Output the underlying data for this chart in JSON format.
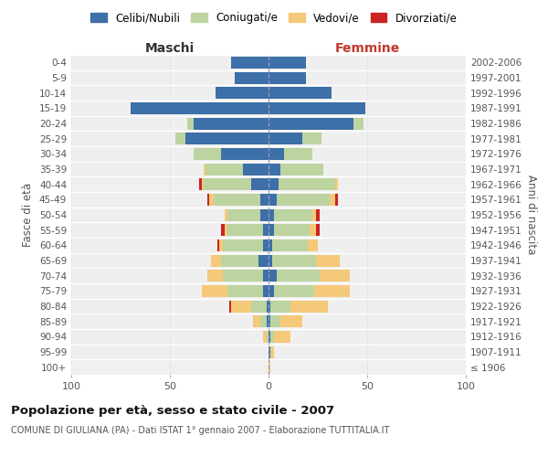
{
  "age_groups": [
    "100+",
    "95-99",
    "90-94",
    "85-89",
    "80-84",
    "75-79",
    "70-74",
    "65-69",
    "60-64",
    "55-59",
    "50-54",
    "45-49",
    "40-44",
    "35-39",
    "30-34",
    "25-29",
    "20-24",
    "15-19",
    "10-14",
    "5-9",
    "0-4"
  ],
  "birth_years": [
    "≤ 1906",
    "1907-1911",
    "1912-1916",
    "1917-1921",
    "1922-1926",
    "1927-1931",
    "1932-1936",
    "1937-1941",
    "1942-1946",
    "1947-1951",
    "1952-1956",
    "1957-1961",
    "1962-1966",
    "1967-1971",
    "1972-1976",
    "1977-1981",
    "1982-1986",
    "1987-1991",
    "1992-1996",
    "1997-2001",
    "2002-2006"
  ],
  "male_celibi": [
    0,
    0,
    0,
    1,
    1,
    3,
    3,
    5,
    3,
    3,
    4,
    4,
    9,
    13,
    24,
    42,
    38,
    70,
    27,
    17,
    19
  ],
  "male_coniugati": [
    0,
    0,
    1,
    3,
    8,
    18,
    20,
    19,
    20,
    18,
    17,
    24,
    24,
    19,
    14,
    5,
    3,
    0,
    0,
    0,
    0
  ],
  "male_vedovi": [
    0,
    0,
    2,
    4,
    10,
    13,
    8,
    5,
    2,
    1,
    1,
    2,
    1,
    1,
    0,
    0,
    0,
    0,
    0,
    0,
    0
  ],
  "male_divorziati": [
    0,
    0,
    0,
    0,
    1,
    0,
    0,
    0,
    1,
    2,
    0,
    1,
    1,
    0,
    0,
    0,
    0,
    0,
    0,
    0,
    0
  ],
  "female_celibi": [
    0,
    1,
    1,
    1,
    1,
    3,
    4,
    2,
    2,
    3,
    3,
    4,
    5,
    6,
    8,
    17,
    43,
    49,
    32,
    19,
    19
  ],
  "female_coniugati": [
    0,
    0,
    2,
    5,
    10,
    20,
    22,
    22,
    18,
    18,
    19,
    27,
    29,
    22,
    14,
    10,
    5,
    0,
    0,
    0,
    0
  ],
  "female_vedovi": [
    1,
    2,
    8,
    11,
    19,
    18,
    15,
    12,
    5,
    3,
    2,
    3,
    1,
    0,
    0,
    0,
    0,
    0,
    0,
    0,
    0
  ],
  "female_divorziati": [
    0,
    0,
    0,
    0,
    0,
    0,
    0,
    0,
    0,
    2,
    2,
    1,
    0,
    0,
    0,
    0,
    0,
    0,
    0,
    0,
    0
  ],
  "color_celibi": "#3d6fa8",
  "color_coniugati": "#bdd4a0",
  "color_vedovi": "#f5c97a",
  "color_divorziati": "#cc2222",
  "title": "Popolazione per età, sesso e stato civile - 2007",
  "subtitle": "COMUNE DI GIULIANA (PA) - Dati ISTAT 1° gennaio 2007 - Elaborazione TUTTITALIA.IT",
  "xlabel_left": "Maschi",
  "xlabel_right": "Femmine",
  "ylabel_left": "Fasce di età",
  "ylabel_right": "Anni di nascita",
  "xlim": 100,
  "bg_color": "#efefef",
  "bar_height": 0.78
}
